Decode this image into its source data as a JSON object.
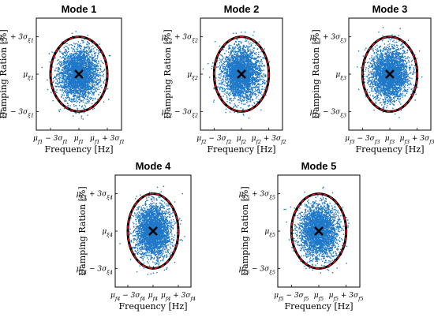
{
  "figure": {
    "xlabel": "Frequency [Hz]",
    "ylabel": "Damping Ration [%]",
    "colors": {
      "points": "#1f78c8",
      "ellipse_outer": "#000000",
      "ellipse_inner": "#e0141e",
      "mean_marker": "#000000"
    }
  },
  "chart_data": [
    {
      "type": "scatter",
      "title": "Mode 1",
      "mode_index": "1",
      "xticks": [
        "μ_f1 − 3σ_f1",
        "μ_f1",
        "μ_f1 + 3σ_f1"
      ],
      "yticks": [
        "μ_ξ1 + 3σ_ξ1",
        "μ_ξ1",
        "μ_ξ1 − 3σ_ξ1"
      ],
      "xlabel": "Frequency [Hz]",
      "ylabel": "Damping Ration [%]",
      "x_unit": "standardized (σ from mean)",
      "y_unit": "standardized (σ from mean)",
      "xlim": [
        -4.5,
        4.5
      ],
      "ylim": [
        -4.5,
        4.5
      ],
      "mean": [
        0,
        0
      ],
      "ellipse_radius_sigma": [
        3,
        3
      ],
      "n_points": 3000
    },
    {
      "type": "scatter",
      "title": "Mode 2",
      "mode_index": "2",
      "xticks": [
        "μ_f2 − 3σ_f2",
        "μ_f2",
        "μ_f2 + 3σ_f2"
      ],
      "yticks": [
        "μ_ξ2 + 3σ_ξ2",
        "μ_ξ2",
        "μ_ξ2 − 3σ_ξ2"
      ],
      "xlabel": "Frequency [Hz]",
      "ylabel": "Damping Ration [%]",
      "x_unit": "standardized (σ from mean)",
      "y_unit": "standardized (σ from mean)",
      "xlim": [
        -4.5,
        4.5
      ],
      "ylim": [
        -4.5,
        4.5
      ],
      "mean": [
        0,
        0
      ],
      "ellipse_radius_sigma": [
        3,
        3
      ],
      "n_points": 3000
    },
    {
      "type": "scatter",
      "title": "Mode 3",
      "mode_index": "3",
      "xticks": [
        "μ_f3 − 3σ_f3",
        "μ_f3",
        "μ_f3 + 3σ_f3"
      ],
      "yticks": [
        "μ_ξ3 + 3σ_ξ3",
        "μ_ξ3",
        "μ_ξ3 − 3σ_ξ3"
      ],
      "xlabel": "Frequency [Hz]",
      "ylabel": "Damping Ration [%]",
      "x_unit": "standardized (σ from mean)",
      "y_unit": "standardized (σ from mean)",
      "xlim": [
        -4.5,
        4.5
      ],
      "ylim": [
        -4.5,
        4.5
      ],
      "mean": [
        0,
        0
      ],
      "ellipse_radius_sigma": [
        3,
        3
      ],
      "n_points": 3000
    },
    {
      "type": "scatter",
      "title": "Mode 4",
      "mode_index": "4",
      "xticks": [
        "μ_f4 − 3σ_f4",
        "μ_f4",
        "μ_f4 + 3σ_f4"
      ],
      "yticks": [
        "μ_ξ4 + 3σ_ξ4",
        "μ_ξ4",
        "μ_ξ4 − 3σ_ξ4"
      ],
      "xlabel": "Frequency [Hz]",
      "ylabel": "Damping Ration [%]",
      "x_unit": "standardized (σ from mean)",
      "y_unit": "standardized (σ from mean)",
      "xlim": [
        -4.5,
        4.5
      ],
      "ylim": [
        -4.5,
        4.5
      ],
      "mean": [
        0,
        0
      ],
      "ellipse_radius_sigma": [
        3,
        3
      ],
      "n_points": 3000
    },
    {
      "type": "scatter",
      "title": "Mode 5",
      "mode_index": "5",
      "xticks": [
        "μ_f5 − 3σ_f5",
        "μ_f5",
        "μ_f5 + 3σ_f5"
      ],
      "yticks": [
        "μ_ξ5 + 3σ_ξ5",
        "μ_ξ5",
        "μ_ξ5 − 3σ_ξ5"
      ],
      "xlabel": "Frequency [Hz]",
      "ylabel": "Damping Ration [%]",
      "x_unit": "standardized (σ from mean)",
      "y_unit": "standardized (σ from mean)",
      "xlim": [
        -4.5,
        4.5
      ],
      "ylim": [
        -4.5,
        4.5
      ],
      "mean": [
        0,
        0
      ],
      "ellipse_radius_sigma": [
        3,
        3
      ],
      "n_points": 3000
    }
  ]
}
